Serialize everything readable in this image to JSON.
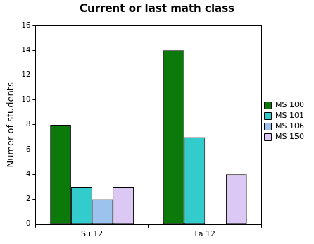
{
  "chart_data": {
    "type": "bar",
    "title": "Current or last math class",
    "y_label": "Numer of students",
    "categories": [
      "Su 12",
      "Fa 12"
    ],
    "series": [
      {
        "name": "MS 100",
        "color": "#0b7a0b",
        "values": [
          8,
          14
        ]
      },
      {
        "name": "MS 101",
        "color": "#33cccc",
        "values": [
          3,
          7
        ]
      },
      {
        "name": "MS 106",
        "color": "#9cc3ee",
        "values": [
          2,
          0
        ]
      },
      {
        "name": "MS 150",
        "color": "#dcc8f5",
        "values": [
          3,
          4
        ]
      }
    ],
    "ylim": [
      0,
      16
    ],
    "yticks": [
      0,
      2,
      4,
      6,
      8,
      10,
      12,
      14,
      16
    ],
    "grid": false,
    "legend": "right"
  }
}
